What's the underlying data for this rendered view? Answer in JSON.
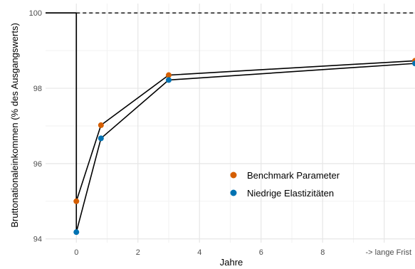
{
  "chart_data": {
    "type": "line",
    "xlabel": "Jahre",
    "ylabel": "Bruttonationaleinkommen (% des Ausgangswerts)",
    "xlim": [
      -1,
      11
    ],
    "ylim": [
      93.9,
      100.25
    ],
    "x_ticks": [
      0,
      2,
      4,
      6,
      8,
      10
    ],
    "x_tick_labels": [
      "0",
      "2",
      "4",
      "6",
      "8",
      "-> lange Frist"
    ],
    "y_ticks": [
      94,
      96,
      98,
      100
    ],
    "y_tick_labels": [
      "94",
      "96",
      "98",
      "100"
    ],
    "reference_line": {
      "y": 100,
      "style": "dashed"
    },
    "grid": true,
    "legend_position": "center-right",
    "series": [
      {
        "name": "Benchmark Parameter",
        "color": "#D55E00",
        "pre_shock": {
          "x": [
            -1,
            0
          ],
          "y": [
            100,
            100
          ]
        },
        "x": [
          0,
          0.8,
          3,
          11
        ],
        "y": [
          95.0,
          97.02,
          98.35,
          98.73
        ]
      },
      {
        "name": "Niedrige Elastizitäten",
        "color": "#0072B2",
        "pre_shock": {
          "x": [
            -1,
            0
          ],
          "y": [
            100,
            100
          ]
        },
        "x": [
          0,
          0.8,
          3,
          11
        ],
        "y": [
          94.18,
          96.67,
          98.22,
          98.66
        ]
      }
    ]
  }
}
